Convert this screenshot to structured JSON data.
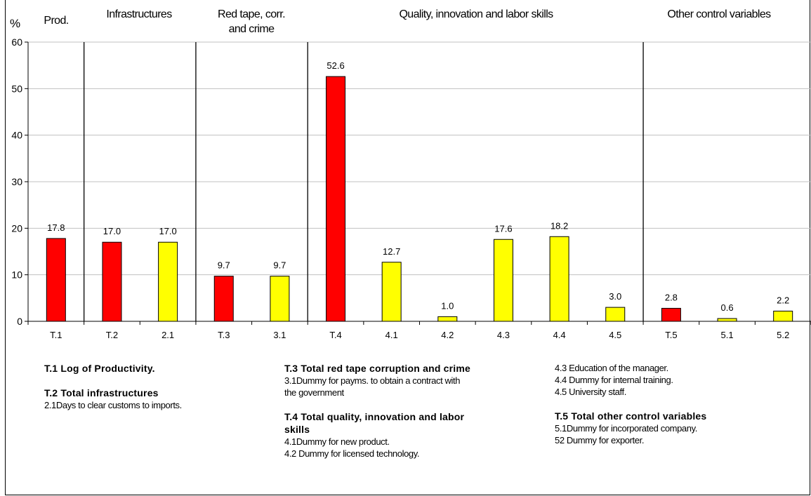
{
  "chart_data": {
    "type": "bar",
    "ylabel": "%",
    "ylim": [
      0,
      60
    ],
    "yticks": [
      0,
      10,
      20,
      30,
      40,
      50,
      60
    ],
    "grid": true,
    "categories": [
      "T.1",
      "T.2",
      "2.1",
      "T.3",
      "3.1",
      "T.4",
      "4.1",
      "4.2",
      "4.3",
      "4.4",
      "4.5",
      "T.5",
      "5.1",
      "5.2"
    ],
    "values": [
      17.8,
      17.0,
      17.0,
      9.7,
      9.7,
      52.6,
      12.7,
      1.0,
      17.6,
      18.2,
      3.0,
      2.8,
      0.6,
      2.2
    ],
    "value_labels": [
      "17.8",
      "17.0",
      "17.0",
      "9.7",
      "9.7",
      "52.6",
      "12.7",
      "1.0",
      "17.6",
      "18.2",
      "3.0",
      "2.8",
      "0.6",
      "2.2"
    ],
    "bar_colors": [
      "#ff0000",
      "#ff0000",
      "#ffff00",
      "#ff0000",
      "#ffff00",
      "#ff0000",
      "#ffff00",
      "#ffff00",
      "#ffff00",
      "#ffff00",
      "#ffff00",
      "#ff0000",
      "#ffff00",
      "#ffff00"
    ],
    "sections": [
      {
        "label": "Prod.",
        "categories": [
          "T.1"
        ]
      },
      {
        "label": "Infrastructures",
        "categories": [
          "T.2",
          "2.1"
        ]
      },
      {
        "label": "Red tape, corr. and crime",
        "categories": [
          "T.3",
          "3.1"
        ]
      },
      {
        "label": "Quality, innovation and labor skills",
        "categories": [
          "T.4",
          "4.1",
          "4.2",
          "4.3",
          "4.4",
          "4.5"
        ]
      },
      {
        "label": "Other control variables",
        "categories": [
          "T.5",
          "5.1",
          "5.2"
        ]
      }
    ]
  },
  "colors": {
    "total_bar": "#ff0000",
    "component_bar": "#ffff00"
  },
  "headers": {
    "prod": "Prod.",
    "infra": "Infrastructures",
    "redtape_line1": "Red tape, corr.",
    "redtape_line2": "and crime",
    "quality": "Quality, innovation and labor skills",
    "other": "Other control variables"
  },
  "notes": {
    "col1": {
      "t1_heading": "T.1 Log of Productivity.",
      "t2_heading": "T.2 Total infrastructures",
      "t2_item1": "2.1Days to clear customs to imports."
    },
    "col2": {
      "t3_heading": "T.3 Total red tape corruption and crime",
      "t3_item1_line1": "3.1Dummy for payms. to obtain a contract with",
      "t3_item1_line2": "the government",
      "t4_heading_line1": "T.4 Total quality, innovation and labor",
      "t4_heading_line2": "skills",
      "t4_item1": "4.1Dummy for new product.",
      "t4_item2": "4.2 Dummy for licensed technology."
    },
    "col3": {
      "item43": "4.3 Education of the manager.",
      "item44": "4.4 Dummy for internal training.",
      "item45": "4.5 University staff.",
      "t5_heading": "T.5 Total other control variables",
      "t5_item1": "5.1Dummy for incorporated company.",
      "t5_item2": "52 Dummy for exporter."
    }
  }
}
